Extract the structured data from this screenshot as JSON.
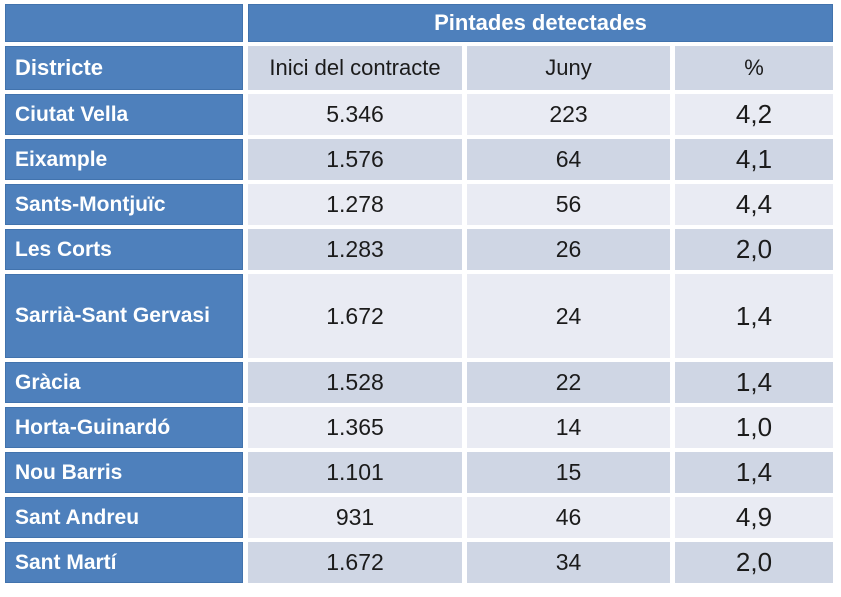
{
  "table": {
    "title": "Pintades detectades",
    "columns": [
      "Districte",
      "Inici del contracte",
      "Juny",
      "%"
    ],
    "rows": [
      {
        "districte": "Ciutat Vella",
        "inici": "5.346",
        "juny": "223",
        "pct": "4,2"
      },
      {
        "districte": "Eixample",
        "inici": "1.576",
        "juny": "64",
        "pct": "4,1"
      },
      {
        "districte": "Sants-Montjuïc",
        "inici": "1.278",
        "juny": "56",
        "pct": "4,4"
      },
      {
        "districte": "Les Corts",
        "inici": "1.283",
        "juny": "26",
        "pct": "2,0"
      },
      {
        "districte": "Sarrià-Sant Gervasi",
        "inici": "1.672",
        "juny": "24",
        "pct": "1,4"
      },
      {
        "districte": "Gràcia",
        "inici": "1.528",
        "juny": "22",
        "pct": "1,4"
      },
      {
        "districte": "Horta-Guinardó",
        "inici": "1.365",
        "juny": "14",
        "pct": "1,0"
      },
      {
        "districte": "Nou Barris",
        "inici": "1.101",
        "juny": "15",
        "pct": "1,4"
      },
      {
        "districte": "Sant Andreu",
        "inici": "931",
        "juny": "46",
        "pct": "4,9"
      },
      {
        "districte": "Sant Martí",
        "inici": "1.672",
        "juny": "34",
        "pct": "2,0"
      }
    ]
  },
  "colors": {
    "header_blue": "#4E80BC",
    "header_blue_border": "#4273AD",
    "band_light": "#E9EBF3",
    "band_dark": "#CFD6E4",
    "text_dark": "#1B1B1B",
    "text_light": "#FFFFFF"
  }
}
